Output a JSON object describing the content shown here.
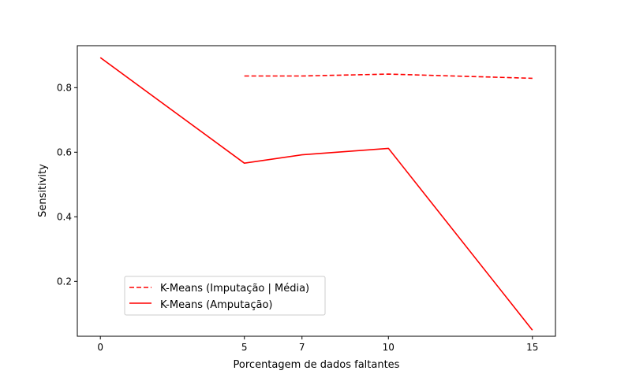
{
  "chart_data": {
    "type": "line",
    "xlabel": "Porcentagem de dados faltantes",
    "ylabel": "Sensitivity",
    "x_ticks": [
      0,
      5,
      7,
      10,
      15
    ],
    "y_ticks": [
      0.2,
      0.4,
      0.6,
      0.8
    ],
    "y_tick_labels": [
      "0.2",
      "0.4",
      "0.6",
      "0.8"
    ],
    "xlim": [
      -0.8,
      15.8
    ],
    "ylim": [
      0.03,
      0.93
    ],
    "grid": false,
    "legend_position": "lower-left",
    "series": [
      {
        "name": "K-Means (Imputação | Média)",
        "style": "dashed",
        "color": "#ff0000",
        "x": [
          5,
          7,
          10,
          15
        ],
        "y": [
          0.836,
          0.836,
          0.842,
          0.829
        ]
      },
      {
        "name": "K-Means (Amputação)",
        "style": "solid",
        "color": "#ff0000",
        "x": [
          0,
          5,
          7,
          10,
          15
        ],
        "y": [
          0.893,
          0.566,
          0.592,
          0.612,
          0.049
        ]
      }
    ]
  }
}
